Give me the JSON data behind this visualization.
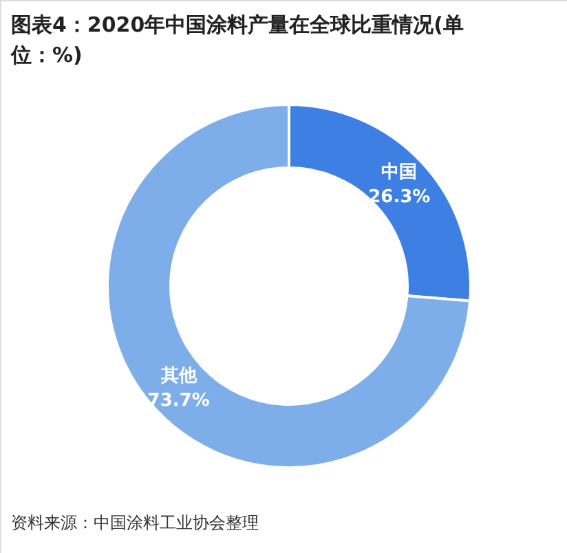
{
  "chart_data": {
    "type": "donut",
    "title": "图表4：2020年中国涂料产量在全球比重情况(单位：%)",
    "categories": [
      "中国",
      "其他"
    ],
    "values": [
      26.3,
      73.7
    ],
    "colors": [
      "#3d7fe3",
      "#7eaeea"
    ],
    "value_labels": [
      "26.3%",
      "73.7%"
    ],
    "annotations": [
      "资料来源：中国涂料工业协会整理"
    ]
  }
}
